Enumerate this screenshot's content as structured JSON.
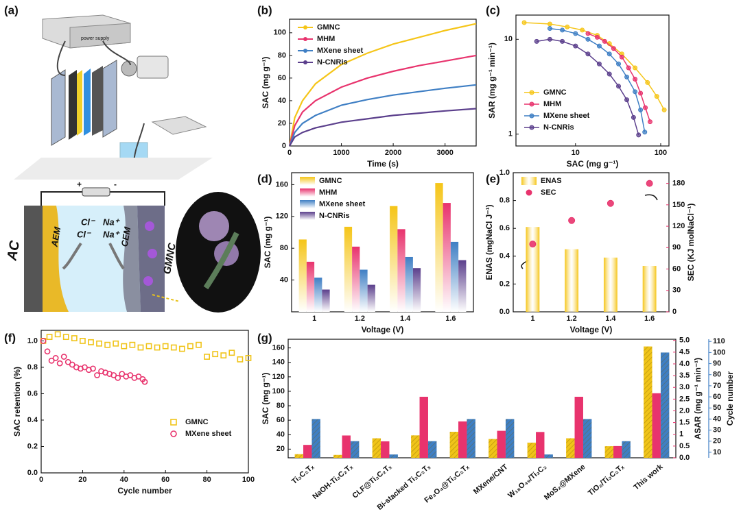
{
  "illustration": {
    "panel": "(a)",
    "power_supply": "power supply",
    "plus": "+",
    "minus": "-",
    "ac": "AC",
    "aem": "AEM",
    "cem": "CEM",
    "gmnc": "GMNC",
    "cl1": "Cl⁻",
    "cl2": "Cl⁻",
    "na1": "Na⁺",
    "na2": "Na⁺"
  },
  "chart_data": [
    {
      "panel": "(b)",
      "type": "line",
      "xlabel": "Time (s)",
      "ylabel": "SAC (mg g⁻¹)",
      "x": [
        0,
        100,
        250,
        500,
        1000,
        1500,
        2000,
        2500,
        3000,
        3600
      ],
      "xlim": [
        0,
        3600
      ],
      "xticks": [
        0,
        1000,
        2000,
        3000
      ],
      "ylim": [
        0,
        112
      ],
      "yticks": [
        0,
        20,
        40,
        60,
        80,
        100
      ],
      "legend": "upper left",
      "series": [
        {
          "name": "GMNC",
          "color": "#f5c518",
          "values": [
            0,
            25,
            40,
            55,
            72,
            82,
            90,
            96,
            102,
            108
          ]
        },
        {
          "name": "MHM",
          "color": "#e8336d",
          "values": [
            0,
            18,
            30,
            40,
            52,
            60,
            66,
            71,
            75,
            80
          ]
        },
        {
          "name": "MXene sheet",
          "color": "#3f7fc4",
          "values": [
            0,
            12,
            20,
            27,
            36,
            41,
            45,
            48,
            51,
            54
          ]
        },
        {
          "name": "N-CNRis",
          "color": "#5b3f8c",
          "values": [
            0,
            8,
            12,
            16,
            21,
            24,
            27,
            29,
            31,
            33
          ]
        }
      ]
    },
    {
      "panel": "(c)",
      "type": "scatter",
      "xlabel": "SAC (mg g⁻¹)",
      "ylabel": "SAR (mg g⁻¹ min⁻¹)",
      "xscale": "log",
      "yscale": "log",
      "xlim": [
        2,
        125
      ],
      "xticks": [
        10,
        100
      ],
      "ylim": [
        0.75,
        18
      ],
      "yticks": [
        1,
        10
      ],
      "legend": "lower left",
      "connect": true,
      "series": [
        {
          "name": "GMNC",
          "color": "#f5c518",
          "marker": "circle",
          "x": [
            2.5,
            5,
            8,
            12,
            18,
            25,
            35,
            50,
            70,
            90,
            110
          ],
          "values": [
            15,
            14.5,
            13.5,
            12.5,
            11,
            9,
            7,
            5,
            3.5,
            2.5,
            1.8
          ]
        },
        {
          "name": "MHM",
          "color": "#e8336d",
          "marker": "circle",
          "x": [
            14,
            18,
            22,
            28,
            35,
            42,
            50,
            58,
            66,
            75
          ],
          "values": [
            11.5,
            10.5,
            9.5,
            8,
            6.5,
            5,
            3.8,
            2.7,
            1.9,
            1.35
          ]
        },
        {
          "name": "MXene sheet",
          "color": "#3f7fc4",
          "marker": "circle",
          "x": [
            5,
            7,
            10,
            14,
            19,
            25,
            32,
            40,
            50,
            58,
            65
          ],
          "values": [
            13,
            12.5,
            11.5,
            10,
            8.5,
            7,
            5.5,
            4,
            2.8,
            1.8,
            1.05
          ]
        },
        {
          "name": "N-CNRis",
          "color": "#5b3f8c",
          "marker": "circle",
          "x": [
            3.5,
            5,
            7,
            10,
            14,
            19,
            25,
            32,
            40,
            48,
            55
          ],
          "values": [
            9.5,
            10,
            9.5,
            8.5,
            7,
            5.5,
            4.3,
            3.2,
            2.3,
            1.5,
            0.98
          ]
        }
      ]
    },
    {
      "panel": "(d)",
      "type": "bar",
      "xlabel": "Voltage (V)",
      "ylabel": "SAC (mg g⁻¹)",
      "categories": [
        "1",
        "1.2",
        "1.4",
        "1.6"
      ],
      "ylim": [
        0,
        175
      ],
      "yticks": [
        40,
        80,
        120,
        160
      ],
      "legend": "upper left",
      "fill": "gradient",
      "series": [
        {
          "name": "GMNC",
          "color": "#f5c518",
          "values": [
            91,
            107,
            133,
            162
          ]
        },
        {
          "name": "MHM",
          "color": "#e8336d",
          "values": [
            63,
            82,
            104,
            137
          ]
        },
        {
          "name": "MXene sheet",
          "color": "#3f7fc4",
          "values": [
            43,
            53,
            69,
            88
          ]
        },
        {
          "name": "N-CNRis",
          "color": "#5b3f8c",
          "values": [
            28,
            34,
            55,
            65
          ]
        }
      ]
    },
    {
      "panel": "(e)",
      "type": "bar",
      "xlabel": "Voltage (V)",
      "ylabel": "ENAS (mgNaCl J⁻¹)",
      "y2label": "SEC (KJ molNaCl⁻¹)",
      "categories": [
        "1",
        "1.2",
        "1.4",
        "1.6"
      ],
      "ylim": [
        0,
        1.0
      ],
      "yticks": [
        {
          "value": 0,
          "label": "0.0"
        },
        {
          "value": 0.2,
          "label": "0.2"
        },
        {
          "value": 0.4,
          "label": "0.4"
        },
        {
          "value": 0.6,
          "label": "0.6"
        },
        {
          "value": 0.8,
          "label": "0.8"
        },
        {
          "value": 1.0,
          "label": "1.0"
        }
      ],
      "y2lim": [
        0,
        195
      ],
      "y2ticks": [
        0,
        30,
        60,
        90,
        120,
        150,
        180
      ],
      "legend": "upper left",
      "fill": "gradient",
      "series": [
        {
          "name": "ENAS",
          "color": "#f5c518",
          "values": [
            0.61,
            0.45,
            0.39,
            0.33
          ]
        },
        {
          "name": "SEC",
          "color": "#e8336d",
          "axis": "y2",
          "type": "scatter",
          "values": [
            95,
            128,
            152,
            180
          ]
        }
      ]
    },
    {
      "panel": "(f)",
      "type": "scatter",
      "xlabel": "Cycle number",
      "ylabel": "SAC retention (%)",
      "xlim": [
        0,
        100
      ],
      "xticks": [
        0,
        20,
        40,
        60,
        80,
        100
      ],
      "ylim": [
        0,
        1.08
      ],
      "yticks": [
        {
          "value": 0,
          "label": "0.0"
        },
        {
          "value": 0.2,
          "label": "0.2"
        },
        {
          "value": 0.4,
          "label": "0.4"
        },
        {
          "value": 0.6,
          "label": "0.6"
        },
        {
          "value": 0.8,
          "label": "0.8"
        },
        {
          "value": 1.0,
          "label": "1.0"
        }
      ],
      "legend": "lower right",
      "connect": false,
      "series": [
        {
          "name": "GMNC",
          "color": "#f0c419",
          "marker": "square",
          "x": [
            1,
            4,
            8,
            12,
            16,
            20,
            24,
            28,
            32,
            36,
            40,
            44,
            48,
            52,
            56,
            60,
            64,
            68,
            72,
            76,
            80,
            84,
            88,
            92,
            96,
            100
          ],
          "values": [
            1.0,
            1.03,
            1.05,
            1.03,
            1.02,
            1.0,
            0.99,
            0.98,
            0.97,
            0.98,
            0.96,
            0.97,
            0.95,
            0.96,
            0.95,
            0.96,
            0.95,
            0.94,
            0.96,
            0.97,
            0.88,
            0.9,
            0.89,
            0.91,
            0.86,
            0.87
          ]
        },
        {
          "name": "MXene sheet",
          "color": "#e8336d",
          "marker": "circle",
          "x": [
            1,
            3,
            5,
            7,
            9,
            11,
            13,
            15,
            17,
            19,
            21,
            23,
            25,
            27,
            29,
            31,
            33,
            35,
            37,
            39,
            41,
            43,
            45,
            47,
            49,
            50
          ],
          "values": [
            1.0,
            0.92,
            0.85,
            0.87,
            0.83,
            0.88,
            0.84,
            0.82,
            0.8,
            0.79,
            0.8,
            0.78,
            0.79,
            0.74,
            0.77,
            0.76,
            0.75,
            0.74,
            0.72,
            0.75,
            0.73,
            0.74,
            0.72,
            0.73,
            0.71,
            0.69
          ]
        }
      ]
    },
    {
      "panel": "(g)",
      "type": "bar",
      "ylabel": "SAC (mg g⁻¹)",
      "y2label": "ASAR (mg g⁻¹ min⁻¹)",
      "y3label": "Cycle number",
      "categories": [
        "Ti₃C₂Tₓ",
        "NaOH-Ti₃C₂Tₓ",
        "CLF@Ti₃C₂Tₓ",
        "Bi-stacked Ti₃C₂Tₓ",
        "Fe₃O₄@Ti₃C₂Tₓ",
        "MXene/CNT",
        "W₁₈O₄₉/Ti₃C₂",
        "MoS₂@MXene",
        "TiO₂/Ti₃C₂Tₓ",
        "This work"
      ],
      "ylim": [
        8,
        172
      ],
      "yticks": [
        20,
        40,
        60,
        80,
        100,
        120,
        140,
        160
      ],
      "ycolor": "#e8c21a",
      "y2lim": [
        0,
        5.05
      ],
      "y2ticks": [
        {
          "value": 0,
          "label": "0.0"
        },
        {
          "value": 0.5,
          "label": "0.5"
        },
        1,
        {
          "value": 1.5,
          "label": "1.5"
        },
        {
          "value": 2,
          "label": "2.0"
        },
        {
          "value": 2.5,
          "label": "2.5"
        },
        {
          "value": 3,
          "label": "3.0"
        },
        {
          "value": 3.5,
          "label": "3.5"
        },
        {
          "value": 4,
          "label": "4.0"
        },
        {
          "value": 4.5,
          "label": "4.5"
        },
        {
          "value": 5,
          "label": "5.0"
        }
      ],
      "y3lim": [
        5,
        112
      ],
      "y3ticks": [
        10,
        20,
        30,
        40,
        50,
        60,
        70,
        80,
        90,
        100,
        110
      ],
      "fill": "hatch",
      "series": [
        {
          "color": "#f0c419",
          "values": [
            13,
            12,
            35,
            39,
            44,
            34,
            29,
            35,
            24,
            162
          ]
        },
        {
          "color": "#e8336d",
          "axis": "y2",
          "values": [
            0.55,
            0.95,
            0.7,
            2.6,
            1.55,
            1.15,
            1.1,
            2.6,
            0.5,
            2.75
          ]
        },
        {
          "color": "#3f7fc4",
          "axis": "y3",
          "values": [
            40,
            20,
            8,
            20,
            40,
            40,
            8,
            40,
            20,
            100
          ]
        }
      ]
    }
  ]
}
